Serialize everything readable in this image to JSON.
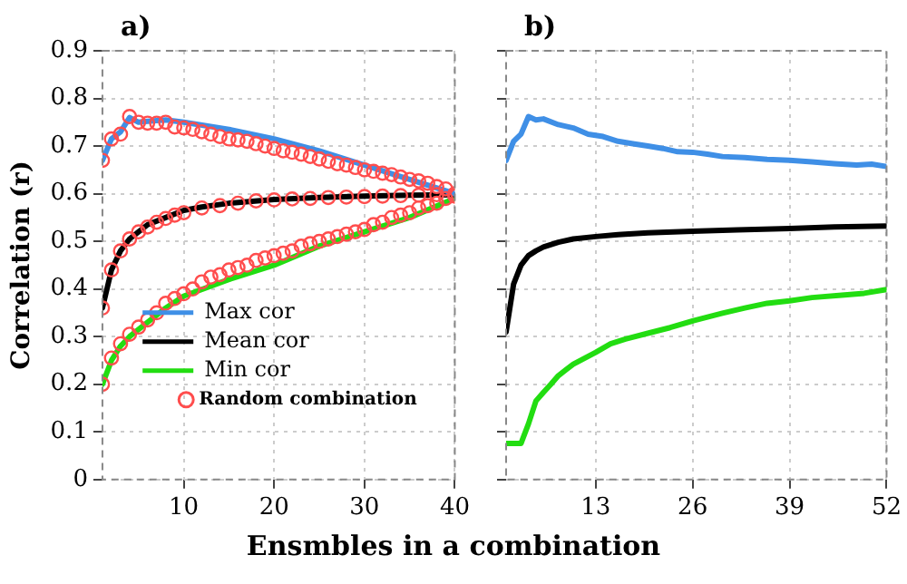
{
  "chart_data": [
    {
      "type": "line",
      "title": "a)",
      "ylabel": "Correlation (r)",
      "xlabel": "Ensmbles in a combination",
      "xlim": [
        1,
        40
      ],
      "xticks": [
        10,
        20,
        30,
        40
      ],
      "ylim": [
        0,
        0.9
      ],
      "yticks": [
        0,
        0.1,
        0.2,
        0.3,
        0.4,
        0.5,
        0.6,
        0.7,
        0.8,
        0.9
      ],
      "grid": true,
      "legend": "bottom",
      "series": [
        {
          "name": "Max cor",
          "color": "#3f8fe6",
          "x": [
            1,
            2,
            3,
            4,
            5,
            6,
            8,
            10,
            15,
            20,
            25,
            30,
            35,
            40
          ],
          "values": [
            0.67,
            0.715,
            0.73,
            0.76,
            0.75,
            0.752,
            0.755,
            0.75,
            0.735,
            0.715,
            0.69,
            0.66,
            0.63,
            0.6
          ]
        },
        {
          "name": "Mean cor",
          "color": "#000000",
          "x": [
            1,
            2,
            3,
            4,
            5,
            6,
            8,
            10,
            12,
            15,
            20,
            25,
            30,
            35,
            40
          ],
          "values": [
            0.36,
            0.44,
            0.48,
            0.505,
            0.52,
            0.535,
            0.55,
            0.565,
            0.572,
            0.58,
            0.588,
            0.592,
            0.595,
            0.597,
            0.598
          ]
        },
        {
          "name": "Min cor",
          "color": "#22dd11",
          "x": [
            1,
            2,
            3,
            4,
            6,
            8,
            10,
            15,
            20,
            25,
            30,
            35,
            40
          ],
          "values": [
            0.2,
            0.25,
            0.28,
            0.3,
            0.33,
            0.36,
            0.385,
            0.42,
            0.45,
            0.49,
            0.52,
            0.55,
            0.59
          ]
        },
        {
          "name": "Random combination",
          "type": "scatter",
          "marker": "circle",
          "color": "#ff4d4d",
          "x": [
            1,
            2,
            3,
            4,
            5,
            6,
            7,
            8,
            9,
            10,
            11,
            12,
            13,
            14,
            15,
            16,
            17,
            18,
            19,
            20,
            21,
            22,
            23,
            24,
            25,
            26,
            27,
            28,
            29,
            30,
            31,
            32,
            33,
            34,
            35,
            36,
            37,
            38,
            39,
            40,
            1,
            2,
            3,
            4,
            5,
            6,
            7,
            8,
            9,
            10,
            12,
            14,
            16,
            18,
            20,
            22,
            24,
            26,
            28,
            30,
            32,
            34,
            36,
            38,
            1,
            2,
            3,
            4,
            5,
            6,
            7,
            8,
            9,
            10,
            11,
            12,
            13,
            14,
            15,
            16,
            17,
            18,
            19,
            20,
            21,
            22,
            23,
            24,
            25,
            26,
            27,
            28,
            29,
            30,
            31,
            32,
            33,
            34,
            35,
            36,
            37,
            38,
            39,
            40
          ],
          "values": [
            0.67,
            0.715,
            0.725,
            0.762,
            0.75,
            0.748,
            0.748,
            0.75,
            0.74,
            0.738,
            0.735,
            0.73,
            0.725,
            0.72,
            0.715,
            0.713,
            0.71,
            0.705,
            0.7,
            0.695,
            0.69,
            0.687,
            0.683,
            0.678,
            0.673,
            0.668,
            0.663,
            0.66,
            0.655,
            0.65,
            0.647,
            0.643,
            0.64,
            0.635,
            0.63,
            0.627,
            0.622,
            0.615,
            0.61,
            0.6,
            0.36,
            0.44,
            0.48,
            0.505,
            0.52,
            0.53,
            0.54,
            0.548,
            0.555,
            0.56,
            0.57,
            0.575,
            0.58,
            0.585,
            0.587,
            0.589,
            0.59,
            0.592,
            0.593,
            0.594,
            0.595,
            0.596,
            0.597,
            0.598,
            0.2,
            0.255,
            0.285,
            0.305,
            0.32,
            0.335,
            0.35,
            0.37,
            0.38,
            0.39,
            0.4,
            0.415,
            0.425,
            0.43,
            0.44,
            0.445,
            0.45,
            0.46,
            0.465,
            0.47,
            0.475,
            0.48,
            0.49,
            0.495,
            0.5,
            0.505,
            0.51,
            0.515,
            0.52,
            0.525,
            0.535,
            0.54,
            0.55,
            0.555,
            0.56,
            0.57,
            0.575,
            0.58,
            0.59,
            0.595
          ]
        }
      ]
    },
    {
      "type": "line",
      "title": "b)",
      "xlim": [
        1,
        52
      ],
      "xticks": [
        13,
        26,
        39,
        52
      ],
      "ylim": [
        0,
        0.9
      ],
      "yticks": [
        0,
        0.1,
        0.2,
        0.3,
        0.4,
        0.5,
        0.6,
        0.7,
        0.8,
        0.9
      ],
      "grid": true,
      "tick_labels": "x",
      "series": [
        {
          "color": "#3f8fe6",
          "x": [
            1,
            2,
            3,
            4,
            5,
            6,
            8,
            10,
            12,
            14,
            16,
            18,
            20,
            22,
            24,
            26,
            28,
            30,
            33,
            36,
            39,
            42,
            45,
            48,
            50,
            52
          ],
          "values": [
            0.67,
            0.71,
            0.725,
            0.762,
            0.755,
            0.757,
            0.745,
            0.738,
            0.725,
            0.72,
            0.71,
            0.705,
            0.7,
            0.695,
            0.688,
            0.687,
            0.683,
            0.678,
            0.676,
            0.672,
            0.67,
            0.667,
            0.663,
            0.66,
            0.662,
            0.657
          ]
        },
        {
          "color": "#000000",
          "x": [
            1,
            2,
            3,
            4,
            5,
            6,
            8,
            10,
            13,
            16,
            20,
            26,
            32,
            39,
            45,
            52
          ],
          "values": [
            0.31,
            0.41,
            0.45,
            0.47,
            0.48,
            0.488,
            0.498,
            0.505,
            0.51,
            0.514,
            0.518,
            0.521,
            0.524,
            0.527,
            0.53,
            0.532
          ]
        },
        {
          "color": "#22dd11",
          "x": [
            1,
            3,
            4,
            5,
            6,
            7,
            8,
            9,
            10,
            13,
            15,
            17,
            20,
            23,
            26,
            30,
            33,
            36,
            39,
            42,
            46,
            49,
            52
          ],
          "values": [
            0.076,
            0.076,
            0.117,
            0.165,
            0.183,
            0.2,
            0.218,
            0.23,
            0.242,
            0.267,
            0.285,
            0.295,
            0.307,
            0.319,
            0.333,
            0.349,
            0.36,
            0.37,
            0.375,
            0.382,
            0.387,
            0.391,
            0.399
          ]
        }
      ]
    }
  ]
}
